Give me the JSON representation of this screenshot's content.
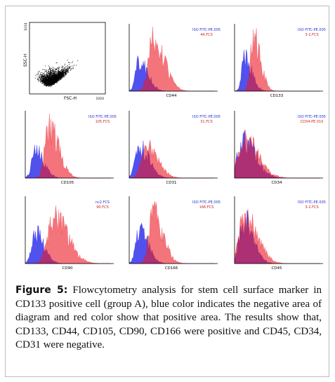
{
  "scatter_panel": {
    "y_max": "1024",
    "y_label": "SSC-H",
    "x_label": "FSC-H",
    "x_max": "1024"
  },
  "histogram_panels": [
    {
      "negative_file": "ISO FITC-PE.005",
      "positive_file": "44.FCS",
      "marker": "CD44"
    },
    {
      "negative_file": "ISO FITC-PE.005",
      "positive_file": "3-2.FCS",
      "marker": "CD133"
    },
    {
      "negative_file": "ISO FITC-PE.005",
      "positive_file": "105.FCS",
      "marker": "CD105"
    },
    {
      "negative_file": "ISO FITC-PE.005",
      "positive_file": "31.FCS",
      "marker": "CD31"
    },
    {
      "negative_file": "ISO FITC-PE.005",
      "positive_file": "CD34-PE.010",
      "marker": "CD34"
    },
    {
      "negative_file": "nc2.FCS",
      "positive_file": "90.FCS",
      "marker": "CD90"
    },
    {
      "negative_file": "ISO FITC-PE.005",
      "positive_file": "166.FCS",
      "marker": "CD166"
    },
    {
      "negative_file": "ISO FITC-PE.005",
      "positive_file": "3-2.FCS",
      "marker": "CD45"
    }
  ],
  "caption": {
    "label": "Figure 5:",
    "text": "Flowcytometry analysis for stem cell surface marker in CD133 positive cell (group A), blue color indicates the negative area of diagram and red color show that positive area. The results show that, CD133, CD44, CD105, CD90, CD166 were positive and CD45, CD34, CD31 were negative."
  }
}
